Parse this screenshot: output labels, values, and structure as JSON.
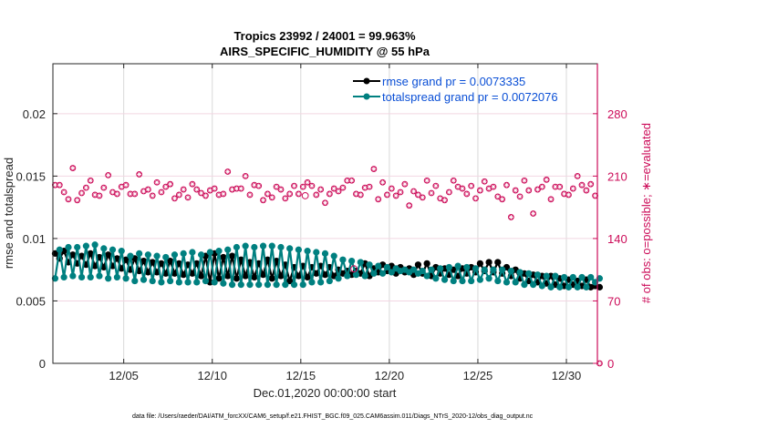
{
  "chart_data": {
    "type": "line",
    "title": [
      "Tropics 23992 / 24001 = 99.963%",
      "AIRS_SPECIFIC_HUMIDITY @ 55 hPa"
    ],
    "xlabel": "Dec.01,2020 00:00:00 start",
    "ylabel": "rmse and totalspread",
    "ylabel_right": "# of obs: o=possible; ∗=evaluated",
    "footnote": "data file: /Users/raeder/DAI/ATM_forcXX/CAM6_setup/f.e21.FHIST_BGC.f09_025.CAM6assim.011/Diags_NTrS_2020-12/obs_diag_output.nc",
    "x_unit": "days since Dec.01,2020 00:00:00",
    "x_step_days": 0.25,
    "xlim": [
      0,
      30.75
    ],
    "xticks": [
      4,
      9,
      14,
      19,
      24,
      29
    ],
    "xtick_labels": [
      "12/05",
      "12/10",
      "12/15",
      "12/20",
      "12/25",
      "12/30"
    ],
    "ylim": [
      0,
      0.024
    ],
    "yticks": [
      0,
      0.005,
      0.01,
      0.015,
      0.02
    ],
    "ytick_labels": [
      "0",
      "0.005",
      "0.01",
      "0.015",
      "0.02"
    ],
    "ylim_right": [
      0,
      336
    ],
    "yticks_right": [
      0,
      70,
      140,
      210,
      280
    ],
    "ytick_labels_right": [
      "0",
      "70",
      "140",
      "210",
      "280"
    ],
    "grid": true,
    "legend_position": "top-right",
    "colors": {
      "rmse": "#000000",
      "totalspread": "#008080",
      "obs": "#cc0c59",
      "grid": "#d9d9d9",
      "grid_right": "#f2d6e2",
      "legend_text": "#0a4fd6"
    },
    "series": [
      {
        "name": "rmse grand pr = 0.0073335",
        "key": "rmse",
        "values": [
          0.0088,
          0.0084,
          0.009,
          0.0081,
          0.0087,
          0.008,
          0.0086,
          0.0079,
          0.0088,
          0.0078,
          0.0085,
          0.0077,
          0.0087,
          0.0078,
          0.0084,
          0.0076,
          0.0083,
          0.0075,
          0.0084,
          0.0074,
          0.0082,
          0.0073,
          0.0081,
          0.0073,
          0.008,
          0.0072,
          0.0082,
          0.0072,
          0.008,
          0.0071,
          0.0079,
          0.0072,
          0.008,
          0.007,
          0.0086,
          0.0065,
          0.0088,
          0.0068,
          0.0085,
          0.007,
          0.0086,
          0.0068,
          0.0083,
          0.007,
          0.0081,
          0.0069,
          0.008,
          0.0071,
          0.0083,
          0.0068,
          0.0082,
          0.007,
          0.0079,
          0.0066,
          0.0077,
          0.007,
          0.0078,
          0.0069,
          0.0077,
          0.0072,
          0.0078,
          0.0071,
          0.0077,
          0.007,
          0.0075,
          0.0072,
          0.0074,
          0.0071,
          0.0074,
          0.0072,
          0.008,
          0.007,
          0.0076,
          0.0073,
          0.0079,
          0.0074,
          0.0078,
          0.0072,
          0.0077,
          0.0073,
          0.0076,
          0.0071,
          0.0079,
          0.0072,
          0.008,
          0.007,
          0.0077,
          0.0072,
          0.0076,
          0.0071,
          0.0075,
          0.007,
          0.0076,
          0.0072,
          0.0077,
          0.0073,
          0.008,
          0.0074,
          0.0081,
          0.0073,
          0.0081,
          0.0072,
          0.0077,
          0.007,
          0.0075,
          0.0068,
          0.0072,
          0.0066,
          0.0071,
          0.0065,
          0.007,
          0.0064,
          0.007,
          0.0063,
          0.0068,
          0.0062,
          0.0067,
          0.0063,
          0.0066,
          0.0062,
          0.0067,
          0.0061,
          0.0062,
          0.0061
        ]
      },
      {
        "name": "totalspread grand pr = 0.0072076",
        "key": "totalspread",
        "values": [
          0.0068,
          0.0091,
          0.0069,
          0.0093,
          0.007,
          0.0093,
          0.0069,
          0.0094,
          0.0069,
          0.0095,
          0.007,
          0.0092,
          0.0068,
          0.0091,
          0.0069,
          0.009,
          0.0068,
          0.0086,
          0.0066,
          0.0088,
          0.0067,
          0.0087,
          0.0066,
          0.0086,
          0.0065,
          0.0085,
          0.0066,
          0.0087,
          0.0065,
          0.0088,
          0.0065,
          0.0089,
          0.0065,
          0.0087,
          0.0066,
          0.0089,
          0.0065,
          0.009,
          0.0064,
          0.0091,
          0.0063,
          0.0093,
          0.0063,
          0.0094,
          0.0063,
          0.0093,
          0.0063,
          0.0094,
          0.0063,
          0.0094,
          0.0063,
          0.0093,
          0.0063,
          0.0092,
          0.0063,
          0.0091,
          0.0063,
          0.009,
          0.0065,
          0.0089,
          0.0065,
          0.0088,
          0.0066,
          0.0086,
          0.0068,
          0.0083,
          0.007,
          0.0082,
          0.0071,
          0.0081,
          0.007,
          0.0079,
          0.0072,
          0.0078,
          0.0072,
          0.0077,
          0.0073,
          0.0076,
          0.0074,
          0.0075,
          0.0073,
          0.0075,
          0.0072,
          0.0074,
          0.007,
          0.0075,
          0.0068,
          0.0076,
          0.0067,
          0.0077,
          0.0066,
          0.0078,
          0.0066,
          0.0077,
          0.0066,
          0.0076,
          0.0067,
          0.0075,
          0.0068,
          0.0075,
          0.0066,
          0.0075,
          0.0065,
          0.0074,
          0.0065,
          0.0073,
          0.0063,
          0.0072,
          0.0063,
          0.0071,
          0.0062,
          0.007,
          0.0061,
          0.007,
          0.0061,
          0.0069,
          0.0061,
          0.0069,
          0.0061,
          0.0069,
          0.0061,
          0.0069,
          0.0065,
          0.0068
        ]
      },
      {
        "name": "# of obs evaluated",
        "key": "obs",
        "axis": "right",
        "values": [
          200,
          200,
          192,
          184,
          219,
          183,
          191,
          197,
          205,
          189,
          188,
          197,
          211,
          192,
          190,
          198,
          200,
          190,
          190,
          212,
          193,
          195,
          188,
          203,
          192,
          198,
          201,
          185,
          189,
          195,
          186,
          201,
          195,
          191,
          188,
          194,
          196,
          189,
          190,
          215,
          195,
          196,
          196,
          210,
          189,
          200,
          199,
          183,
          190,
          186,
          198,
          195,
          185,
          190,
          199,
          190,
          198,
          203,
          199,
          189,
          195,
          180,
          190,
          196,
          193,
          197,
          205,
          205,
          190,
          189,
          197,
          198,
          218,
          184,
          203,
          189,
          196,
          188,
          192,
          201,
          177,
          193,
          189,
          186,
          205,
          191,
          199,
          185,
          183,
          192,
          205,
          198,
          196,
          190,
          199,
          185,
          194,
          204,
          196,
          198,
          187,
          184,
          200,
          164,
          194,
          187,
          205,
          194,
          168,
          195,
          198,
          206,
          184,
          198,
          198,
          190,
          189,
          196,
          210,
          200,
          194,
          201,
          188,
          0
        ]
      },
      {
        "name": "# of obs possible",
        "key": "obs_possible",
        "axis": "right",
        "values_note": "same as evaluated except where shown as 'o' marker",
        "extra_points": [
          {
            "x": 14.25,
            "count": 188
          },
          {
            "x": 17.0,
            "count": 106
          }
        ]
      }
    ]
  }
}
